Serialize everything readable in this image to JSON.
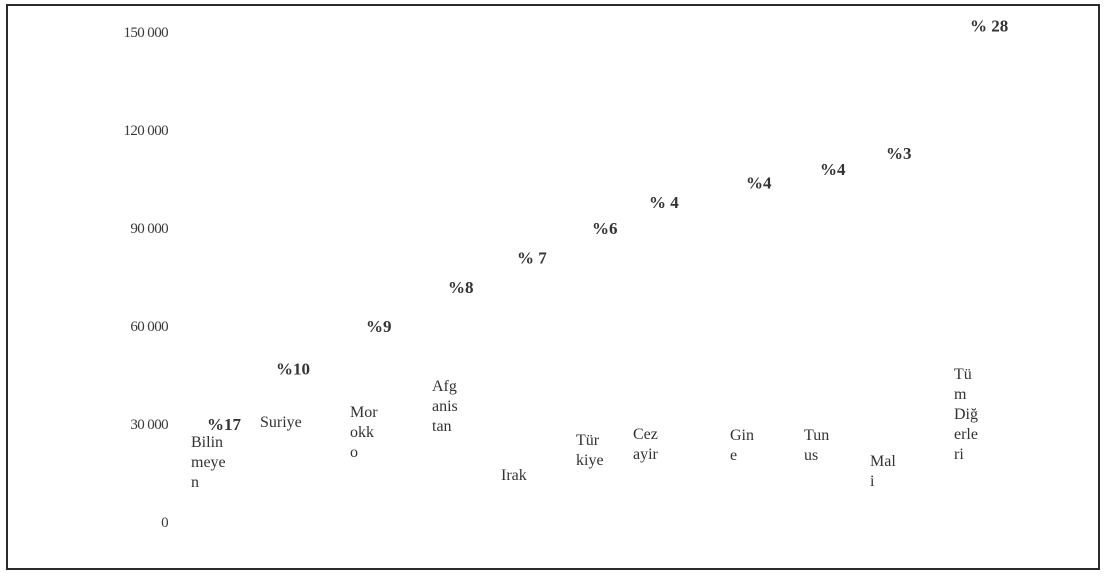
{
  "chart_data": {
    "type": "scatter",
    "ylim": [
      0,
      150000
    ],
    "y_ticks": [
      "0",
      "30 000",
      "60 000",
      "90 000",
      "120 000",
      "150 000"
    ],
    "grid": false,
    "legend": "none",
    "text_color": "#333333",
    "points": [
      {
        "label_lines": [
          "Bilin",
          "meye",
          "n"
        ],
        "percent": "%17",
        "value": 30000
      },
      {
        "label_lines": [
          "Suriye"
        ],
        "percent": "%10",
        "value": 47000
      },
      {
        "label_lines": [
          "Mor",
          "okk",
          "o"
        ],
        "percent": "%9",
        "value": 60000
      },
      {
        "label_lines": [
          "Afg",
          "anis",
          "tan"
        ],
        "percent": "%8",
        "value": 72000
      },
      {
        "label_lines": [
          "Irak"
        ],
        "percent": "% 7",
        "value": 81000
      },
      {
        "label_lines": [
          "Tür",
          "kiye"
        ],
        "percent": "%6",
        "value": 90000
      },
      {
        "label_lines": [
          "Cez",
          "ayir"
        ],
        "percent": "% 4",
        "value": 98000
      },
      {
        "label_lines": [
          "Gin",
          "e"
        ],
        "percent": "%4",
        "value": 104000
      },
      {
        "label_lines": [
          "Tun",
          "us"
        ],
        "percent": "%4",
        "value": 108000
      },
      {
        "label_lines": [
          "Mal",
          "i"
        ],
        "percent": "%3",
        "value": 113000
      },
      {
        "label_lines": [
          "Tü",
          "m",
          "Diğ",
          "erle",
          "ri"
        ],
        "percent": "% 28",
        "value": 152000
      }
    ]
  }
}
